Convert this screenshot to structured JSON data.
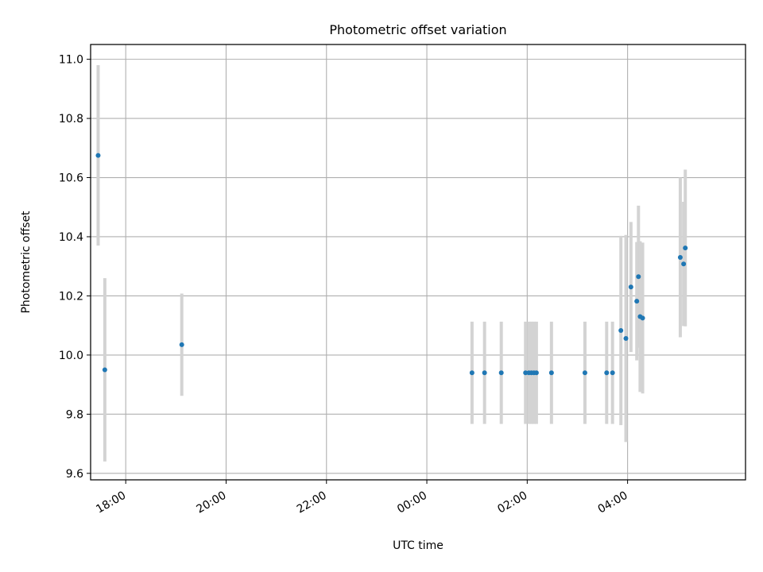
{
  "chart_data": {
    "type": "scatter",
    "title": "Photometric offset variation",
    "xlabel": "UTC time",
    "ylabel": "Photometric offset",
    "x_axis": {
      "kind": "time",
      "ticks": [
        "18:00",
        "20:00",
        "22:00",
        "00:00",
        "02:00",
        "04:00"
      ],
      "range": [
        "17:18",
        "06:21"
      ]
    },
    "y_axis": {
      "ticks": [
        "9.6",
        "9.8",
        "10.0",
        "10.2",
        "10.4",
        "10.6",
        "10.8",
        "11.0"
      ],
      "range": [
        9.578,
        11.05
      ]
    },
    "grid": true,
    "colors": {
      "point": "#1f77b4",
      "errorbar": "#d3d3d3",
      "grid": "#b0b0b0"
    },
    "points": [
      {
        "x": "17:27",
        "y": 10.675,
        "yerr": 0.305
      },
      {
        "x": "17:35",
        "y": 9.95,
        "yerr": 0.31
      },
      {
        "x": "19:07",
        "y": 10.035,
        "yerr": 0.173
      },
      {
        "x": "00:54",
        "y": 9.94,
        "yerr": 0.173
      },
      {
        "x": "01:09",
        "y": 9.94,
        "yerr": 0.173
      },
      {
        "x": "01:29",
        "y": 9.94,
        "yerr": 0.173
      },
      {
        "x": "01:58",
        "y": 9.94,
        "yerr": 0.173
      },
      {
        "x": "02:02",
        "y": 9.94,
        "yerr": 0.173
      },
      {
        "x": "02:05",
        "y": 9.94,
        "yerr": 0.173
      },
      {
        "x": "02:08",
        "y": 9.94,
        "yerr": 0.173
      },
      {
        "x": "02:11",
        "y": 9.94,
        "yerr": 0.173
      },
      {
        "x": "02:29",
        "y": 9.94,
        "yerr": 0.173
      },
      {
        "x": "03:09",
        "y": 9.94,
        "yerr": 0.173
      },
      {
        "x": "03:35",
        "y": 9.94,
        "yerr": 0.173
      },
      {
        "x": "03:42",
        "y": 9.94,
        "yerr": 0.173
      },
      {
        "x": "03:52",
        "y": 10.083,
        "yerr": 0.32
      },
      {
        "x": "03:58",
        "y": 10.056,
        "yerr": 0.35
      },
      {
        "x": "04:04",
        "y": 10.23,
        "yerr": 0.22
      },
      {
        "x": "04:11",
        "y": 10.182,
        "yerr": 0.2
      },
      {
        "x": "04:13",
        "y": 10.265,
        "yerr": 0.24
      },
      {
        "x": "04:15",
        "y": 10.13,
        "yerr": 0.255
      },
      {
        "x": "04:18",
        "y": 10.125,
        "yerr": 0.255
      },
      {
        "x": "05:03",
        "y": 10.33,
        "yerr": 0.27
      },
      {
        "x": "05:07",
        "y": 10.308,
        "yerr": 0.21
      },
      {
        "x": "05:09",
        "y": 10.362,
        "yerr": 0.265
      }
    ]
  }
}
